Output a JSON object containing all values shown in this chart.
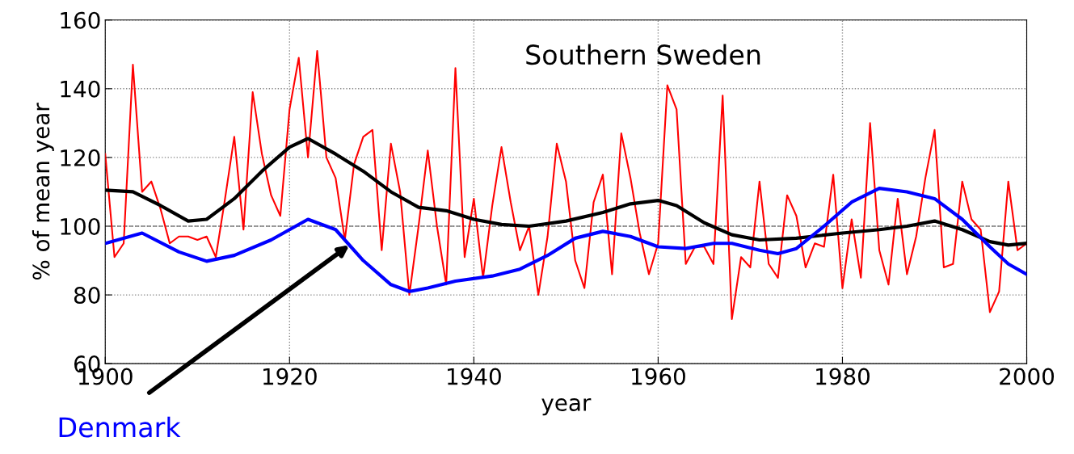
{
  "chart_data": {
    "type": "line",
    "title": "Southern Sweden",
    "xlabel": "year",
    "ylabel": "% of mean year",
    "xlim": [
      1900,
      2000
    ],
    "xticks": [
      1900,
      1920,
      1940,
      1960,
      1980,
      2000
    ],
    "ylim": [
      60,
      160
    ],
    "yticks": [
      60,
      80,
      100,
      120,
      140,
      160
    ],
    "grid": true,
    "line_style": "solid",
    "ref_lines": [
      {
        "axis": "y",
        "value": 100,
        "color": "#808080",
        "line_style": "dashed"
      }
    ],
    "annotations": [
      "Denmark"
    ],
    "series": [
      {
        "color": "#ff0000",
        "x": [
          1900,
          1901,
          1902,
          1903,
          1904,
          1905,
          1906,
          1907,
          1908,
          1909,
          1910,
          1911,
          1912,
          1913,
          1914,
          1915,
          1916,
          1917,
          1918,
          1919,
          1920,
          1921,
          1922,
          1923,
          1924,
          1925,
          1926,
          1927,
          1928,
          1929,
          1930,
          1931,
          1932,
          1933,
          1934,
          1935,
          1936,
          1937,
          1938,
          1939,
          1940,
          1941,
          1942,
          1943,
          1944,
          1945,
          1946,
          1947,
          1948,
          1949,
          1950,
          1951,
          1952,
          1953,
          1954,
          1955,
          1956,
          1957,
          1958,
          1959,
          1960,
          1961,
          1962,
          1963,
          1964,
          1965,
          1966,
          1967,
          1968,
          1969,
          1970,
          1971,
          1972,
          1973,
          1974,
          1975,
          1976,
          1977,
          1978,
          1979,
          1980,
          1981,
          1982,
          1983,
          1984,
          1985,
          1986,
          1987,
          1988,
          1989,
          1990,
          1991,
          1992,
          1993,
          1994,
          1995,
          1996,
          1997,
          1998,
          1999,
          2000
        ],
        "values": [
          121,
          91,
          95,
          147,
          110,
          113,
          105,
          95,
          97,
          97,
          96,
          97,
          91,
          108,
          126,
          99,
          139,
          121,
          109,
          103,
          134,
          149,
          120,
          151,
          120,
          114,
          96,
          118,
          126,
          128,
          93,
          124,
          110,
          80,
          100,
          122,
          100,
          83,
          146,
          91,
          108,
          85,
          106,
          123,
          107,
          93,
          100,
          80,
          97,
          124,
          113,
          90,
          82,
          107,
          115,
          86,
          127,
          114,
          98,
          86,
          95,
          141,
          134,
          89,
          94,
          94,
          89,
          138,
          73,
          91,
          88,
          113,
          89,
          85,
          109,
          103,
          88,
          95,
          94,
          115,
          82,
          102,
          85,
          130,
          93,
          83,
          108,
          86,
          97,
          114,
          128,
          88,
          89,
          113,
          102,
          99,
          75,
          81,
          113,
          93,
          95
        ]
      },
      {
        "color": "#000000",
        "x": [
          1900,
          1903,
          1906,
          1909,
          1911,
          1914,
          1917,
          1920,
          1922,
          1925,
          1928,
          1931,
          1934,
          1937,
          1940,
          1943,
          1946,
          1950,
          1954,
          1957,
          1960,
          1962,
          1965,
          1968,
          1971,
          1975,
          1980,
          1984,
          1987,
          1990,
          1993,
          1996,
          1998,
          2000
        ],
        "values": [
          110.5,
          110,
          106,
          101.5,
          102,
          108,
          116,
          123,
          125.5,
          121,
          116,
          110,
          105.5,
          104.5,
          102,
          100.5,
          100,
          101.5,
          104,
          106.5,
          107.5,
          106,
          101,
          97.5,
          96,
          96.5,
          98,
          99,
          100,
          101.5,
          99,
          95.5,
          94.5,
          95
        ]
      },
      {
        "color": "#0000ff",
        "x": [
          1900,
          1904,
          1908,
          1911,
          1914,
          1918,
          1922,
          1925,
          1928,
          1931,
          1933,
          1935,
          1938,
          1942,
          1945,
          1948,
          1951,
          1954,
          1957,
          1960,
          1963,
          1966,
          1968,
          1971,
          1973,
          1975,
          1978,
          1981,
          1984,
          1987,
          1990,
          1993,
          1996,
          1998,
          2000
        ],
        "values": [
          95,
          98,
          92.5,
          89.8,
          91.5,
          96,
          102,
          99,
          90,
          83,
          81,
          82,
          84,
          85.5,
          87.5,
          91.5,
          96.5,
          98.5,
          97,
          94,
          93.5,
          95,
          95,
          93,
          92,
          93.5,
          100,
          107,
          111,
          110,
          108,
          102,
          94,
          89,
          86
        ]
      }
    ]
  }
}
